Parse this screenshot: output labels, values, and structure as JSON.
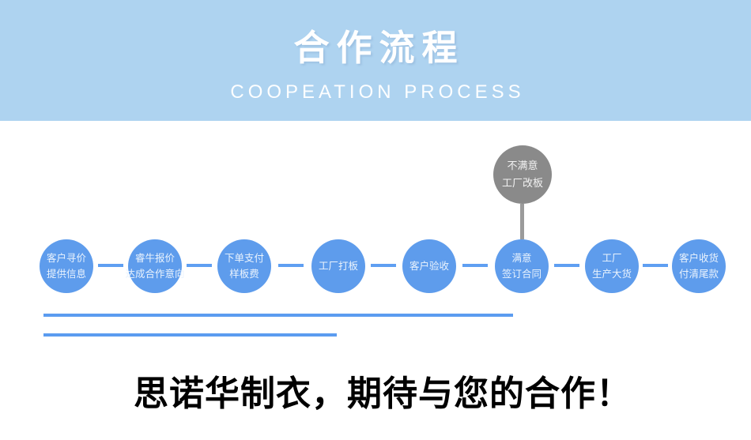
{
  "header": {
    "title": "合作流程",
    "subtitle": "COOPEATION PROCESS"
  },
  "flow": {
    "unsat_node": {
      "lines": [
        "不满意",
        "工厂改板"
      ]
    },
    "steps": [
      {
        "lines": [
          "客户寻价",
          "提供信息"
        ]
      },
      {
        "lines": [
          "睿牛报价",
          "达成合作意向"
        ]
      },
      {
        "lines": [
          "下单支付",
          "样板费"
        ]
      },
      {
        "lines": [
          "工厂打板"
        ]
      },
      {
        "lines": [
          "客户验收"
        ]
      },
      {
        "lines": [
          "满意",
          "签订合同"
        ]
      },
      {
        "lines": [
          "工厂",
          "生产大货"
        ]
      },
      {
        "lines": [
          "客户收货",
          "付清尾款"
        ]
      }
    ]
  },
  "footer": {
    "slogan": "思诺华制衣，期待与您的合作！"
  },
  "colors": {
    "header_bg": "#aed3f0",
    "title_text": "#ffffff",
    "subtitle_text": "#fdfeff",
    "node_blue": "#5e9cec",
    "node_text": "#eaf3fd",
    "connector_blue": "#5f9ff2",
    "underline_blue": "#5b9cf0",
    "unsat_gray": "#8a8a8a",
    "gray_connector": "#9b9b9b",
    "slogan_text": "#000000"
  }
}
